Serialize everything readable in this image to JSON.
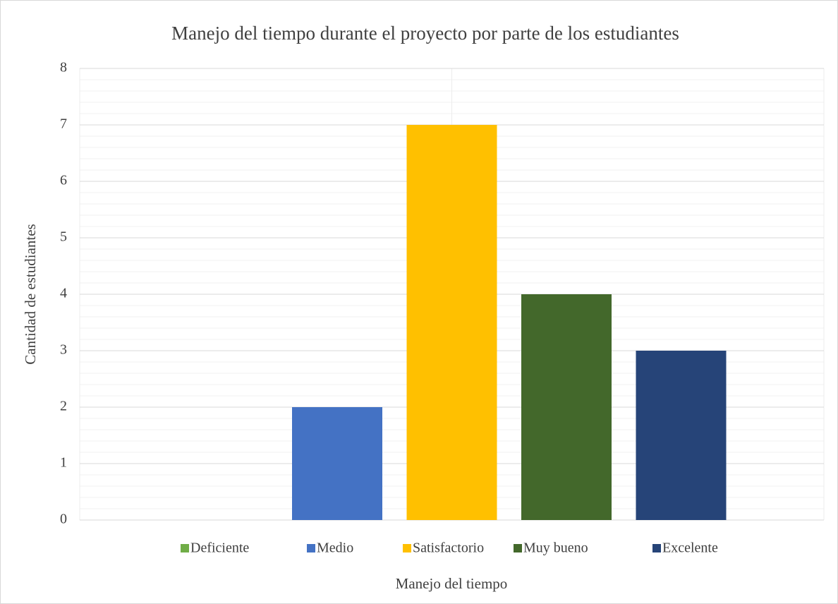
{
  "chart_data": {
    "type": "bar",
    "title": "Manejo del tiempo durante el proyecto por parte de los estudiantes",
    "x_label": "Manejo del tiempo",
    "y_label": "Cantidad de estudiantes",
    "categories": [
      null
    ],
    "series": [
      {
        "name": "Deficiente",
        "color": "#70ad47",
        "values": [
          0
        ]
      },
      {
        "name": "Medio",
        "color": "#4472c4",
        "values": [
          2
        ]
      },
      {
        "name": "Satisfactorio",
        "color": "#ffc000",
        "values": [
          7
        ]
      },
      {
        "name": "Muy bueno",
        "color": "#43682b",
        "values": [
          4
        ]
      },
      {
        "name": "Excelente",
        "color": "#264478",
        "values": [
          3
        ]
      }
    ],
    "ylim": [
      0,
      8
    ],
    "yticks": [
      0,
      1,
      2,
      3,
      4,
      5,
      6,
      7,
      8
    ],
    "grid": true,
    "legend": "bottom"
  }
}
